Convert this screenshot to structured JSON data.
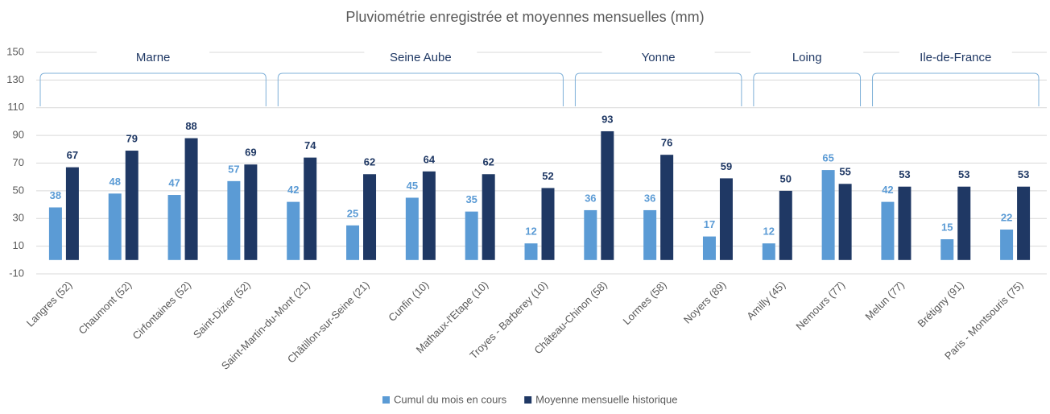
{
  "chart_data": {
    "type": "bar",
    "title": "Pluviométrie enregistrée et moyennes mensuelles (mm)",
    "categories": [
      "Langres (52)",
      "Chaumont (52)",
      "Cirfontaines (52)",
      "Saint-Dizier (52)",
      "Saint-Martin-du-Mont (21)",
      "Châtillon-sur-Seine (21)",
      "Cunfin (10)",
      "Mathaux-l'Etape (10)",
      "Troyes - Barberey (10)",
      "Château-Chinon (58)",
      "Lormes (58)",
      "Noyers (89)",
      "Amilly (45)",
      "Nemours (77)",
      "Melun (77)",
      "Brétigny (91)",
      "Paris - Montsouris (75)"
    ],
    "series": [
      {
        "name": "Cumul du mois en cours",
        "color": "#5b9bd5",
        "values": [
          38,
          48,
          47,
          57,
          42,
          25,
          45,
          35,
          12,
          36,
          36,
          17,
          12,
          65,
          42,
          15,
          22
        ]
      },
      {
        "name": "Moyenne mensuelle historique",
        "color": "#1f3864",
        "values": [
          67,
          79,
          88,
          69,
          74,
          62,
          64,
          62,
          52,
          93,
          76,
          59,
          50,
          55,
          53,
          53,
          53
        ]
      }
    ],
    "groups": [
      "Marne",
      "Seine Aube",
      "Yonne",
      "Loing",
      "Ile-de-France"
    ],
    "ylim": [
      -10,
      150
    ],
    "yticks": [
      -10,
      10,
      30,
      50,
      70,
      90,
      110,
      130,
      150
    ],
    "grid": true,
    "legend": "bottom"
  }
}
